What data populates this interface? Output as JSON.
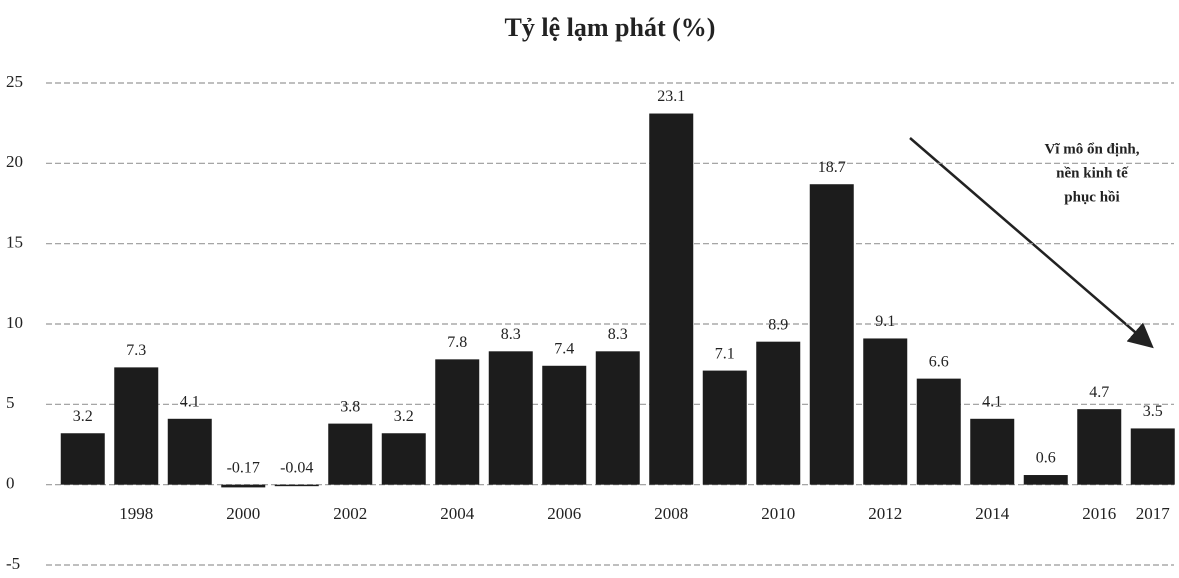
{
  "chart_data": {
    "type": "bar",
    "title": "Tỷ lệ lạm phát (%)",
    "categories": [
      null,
      "1998",
      null,
      "2000",
      null,
      "2002",
      null,
      "2004",
      null,
      "2006",
      null,
      "2008",
      null,
      "2010",
      null,
      "2012",
      null,
      "2014",
      null,
      "2016",
      "2017"
    ],
    "values": [
      3.2,
      7.3,
      4.1,
      -0.17,
      -0.04,
      3.8,
      3.2,
      7.8,
      8.3,
      7.4,
      8.3,
      23.1,
      7.1,
      8.9,
      18.7,
      9.1,
      6.6,
      4.1,
      0.6,
      4.7,
      3.5
    ],
    "color": "#1c1c1c",
    "ylim": [
      -5,
      25
    ],
    "yticks": [
      -5,
      0,
      5,
      10,
      15,
      20,
      25
    ],
    "grid": true,
    "annotation": [
      "Vĩ mô ổn định,",
      "nền kinh tế",
      "phục hồi"
    ]
  }
}
